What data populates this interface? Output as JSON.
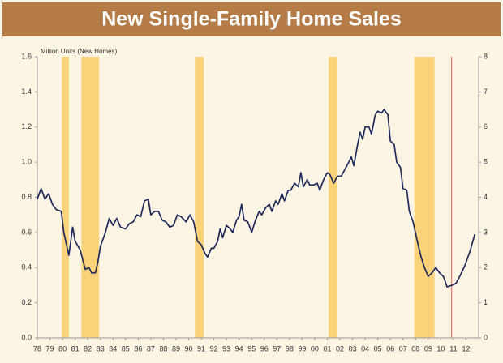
{
  "chart_data": {
    "type": "line",
    "title": "New Single-Family Home Sales",
    "y_label": "Million Units (New Homes)",
    "xlim": [
      1978,
      2013
    ],
    "xticks": [
      {
        "value": 1978,
        "label": "78"
      },
      {
        "value": 1979,
        "label": "79"
      },
      {
        "value": 1980,
        "label": "80"
      },
      {
        "value": 1981,
        "label": "81"
      },
      {
        "value": 1982,
        "label": "82"
      },
      {
        "value": 1983,
        "label": "83"
      },
      {
        "value": 1984,
        "label": "84"
      },
      {
        "value": 1985,
        "label": "85"
      },
      {
        "value": 1986,
        "label": "86"
      },
      {
        "value": 1987,
        "label": "87"
      },
      {
        "value": 1988,
        "label": "88"
      },
      {
        "value": 1989,
        "label": "89"
      },
      {
        "value": 1990,
        "label": "90"
      },
      {
        "value": 1991,
        "label": "91"
      },
      {
        "value": 1992,
        "label": "92"
      },
      {
        "value": 1993,
        "label": "93"
      },
      {
        "value": 1994,
        "label": "94"
      },
      {
        "value": 1995,
        "label": "95"
      },
      {
        "value": 1996,
        "label": "96"
      },
      {
        "value": 1997,
        "label": "97"
      },
      {
        "value": 1998,
        "label": "98"
      },
      {
        "value": 1999,
        "label": "99"
      },
      {
        "value": 2000,
        "label": "00"
      },
      {
        "value": 2001,
        "label": "01"
      },
      {
        "value": 2002,
        "label": "02"
      },
      {
        "value": 2003,
        "label": "03"
      },
      {
        "value": 2004,
        "label": "04"
      },
      {
        "value": 2005,
        "label": "05"
      },
      {
        "value": 2006,
        "label": "06"
      },
      {
        "value": 2007,
        "label": "07"
      },
      {
        "value": 2008,
        "label": "08"
      },
      {
        "value": 2009,
        "label": "09"
      },
      {
        "value": 2010,
        "label": "10"
      },
      {
        "value": 2011,
        "label": "11"
      },
      {
        "value": 2012,
        "label": "12"
      }
    ],
    "ylim": [
      0,
      1.6
    ],
    "yticks": [
      {
        "value": 0,
        "label": "0.0"
      },
      0.2,
      0.4,
      0.6,
      0.8,
      {
        "value": 1,
        "label": "1.0"
      },
      1.2,
      1.4,
      1.6
    ],
    "y2lim": [
      0,
      8
    ],
    "y2ticks": [
      0,
      1,
      2,
      3,
      4,
      5,
      6,
      7,
      8
    ],
    "bands_color": "#f9d27a",
    "bands": [
      {
        "x0": 1979.95,
        "x1": 1980.5
      },
      {
        "x0": 1981.5,
        "x1": 1982.9
      },
      {
        "x0": 1990.5,
        "x1": 1991.2
      },
      {
        "x0": 2001.1,
        "x1": 2001.8
      },
      {
        "x0": 2007.9,
        "x1": 2009.5
      }
    ],
    "vline": {
      "x": 2010.85,
      "color": "#e07a6a"
    },
    "series": [
      {
        "color": "#1f2a5c",
        "x": [
          1978.0,
          1978.3,
          1978.6,
          1978.9,
          1979.2,
          1979.5,
          1979.9,
          1980.1,
          1980.5,
          1980.8,
          1981.0,
          1981.4,
          1981.8,
          1982.1,
          1982.3,
          1982.6,
          1982.8,
          1983.0,
          1983.4,
          1983.7,
          1984.0,
          1984.3,
          1984.6,
          1985.0,
          1985.3,
          1985.6,
          1985.9,
          1986.2,
          1986.5,
          1986.8,
          1987.0,
          1987.3,
          1987.6,
          1987.9,
          1988.2,
          1988.5,
          1988.8,
          1989.1,
          1989.4,
          1989.8,
          1990.1,
          1990.4,
          1990.7,
          1991.0,
          1991.3,
          1991.5,
          1991.8,
          1992.0,
          1992.3,
          1992.5,
          1992.7,
          1993.0,
          1993.3,
          1993.5,
          1993.8,
          1994.0,
          1994.2,
          1994.4,
          1994.7,
          1995.0,
          1995.3,
          1995.6,
          1995.8,
          1996.1,
          1996.4,
          1996.6,
          1996.9,
          1997.1,
          1997.4,
          1997.6,
          1997.9,
          1998.1,
          1998.4,
          1998.7,
          1998.9,
          1999.1,
          1999.4,
          1999.6,
          1999.9,
          2000.2,
          2000.4,
          2000.7,
          2001.0,
          2001.2,
          2001.5,
          2001.8,
          2002.1,
          2002.4,
          2002.7,
          2002.9,
          2003.1,
          2003.4,
          2003.6,
          2003.8,
          2004.0,
          2004.3,
          2004.5,
          2004.8,
          2005.0,
          2005.3,
          2005.5,
          2005.8,
          2006.0,
          2006.3,
          2006.5,
          2006.8,
          2007.0,
          2007.3,
          2007.5,
          2007.8,
          2008.1,
          2008.4,
          2008.7,
          2009.0,
          2009.3,
          2009.6,
          2009.9,
          2010.2,
          2010.5,
          2010.9,
          2011.2,
          2011.5,
          2011.9,
          2012.3,
          2012.7
        ],
        "values": [
          0.79,
          0.85,
          0.79,
          0.82,
          0.76,
          0.73,
          0.72,
          0.6,
          0.47,
          0.63,
          0.55,
          0.5,
          0.39,
          0.4,
          0.37,
          0.37,
          0.43,
          0.52,
          0.6,
          0.68,
          0.64,
          0.68,
          0.63,
          0.62,
          0.65,
          0.66,
          0.7,
          0.69,
          0.78,
          0.79,
          0.7,
          0.72,
          0.72,
          0.67,
          0.66,
          0.63,
          0.64,
          0.7,
          0.69,
          0.66,
          0.7,
          0.66,
          0.55,
          0.53,
          0.48,
          0.46,
          0.51,
          0.51,
          0.55,
          0.62,
          0.57,
          0.64,
          0.62,
          0.6,
          0.67,
          0.69,
          0.76,
          0.67,
          0.66,
          0.6,
          0.67,
          0.72,
          0.7,
          0.74,
          0.76,
          0.72,
          0.78,
          0.76,
          0.82,
          0.78,
          0.84,
          0.84,
          0.88,
          0.86,
          0.94,
          0.86,
          0.9,
          0.87,
          0.87,
          0.88,
          0.84,
          0.9,
          0.94,
          0.93,
          0.88,
          0.92,
          0.92,
          0.96,
          1.0,
          1.03,
          0.98,
          1.1,
          1.17,
          1.13,
          1.2,
          1.2,
          1.16,
          1.27,
          1.29,
          1.28,
          1.3,
          1.27,
          1.12,
          1.1,
          1.0,
          0.97,
          0.85,
          0.84,
          0.72,
          0.66,
          0.56,
          0.47,
          0.4,
          0.35,
          0.37,
          0.4,
          0.37,
          0.35,
          0.29,
          0.3,
          0.31,
          0.35,
          0.41,
          0.49,
          0.59
        ]
      }
    ]
  }
}
